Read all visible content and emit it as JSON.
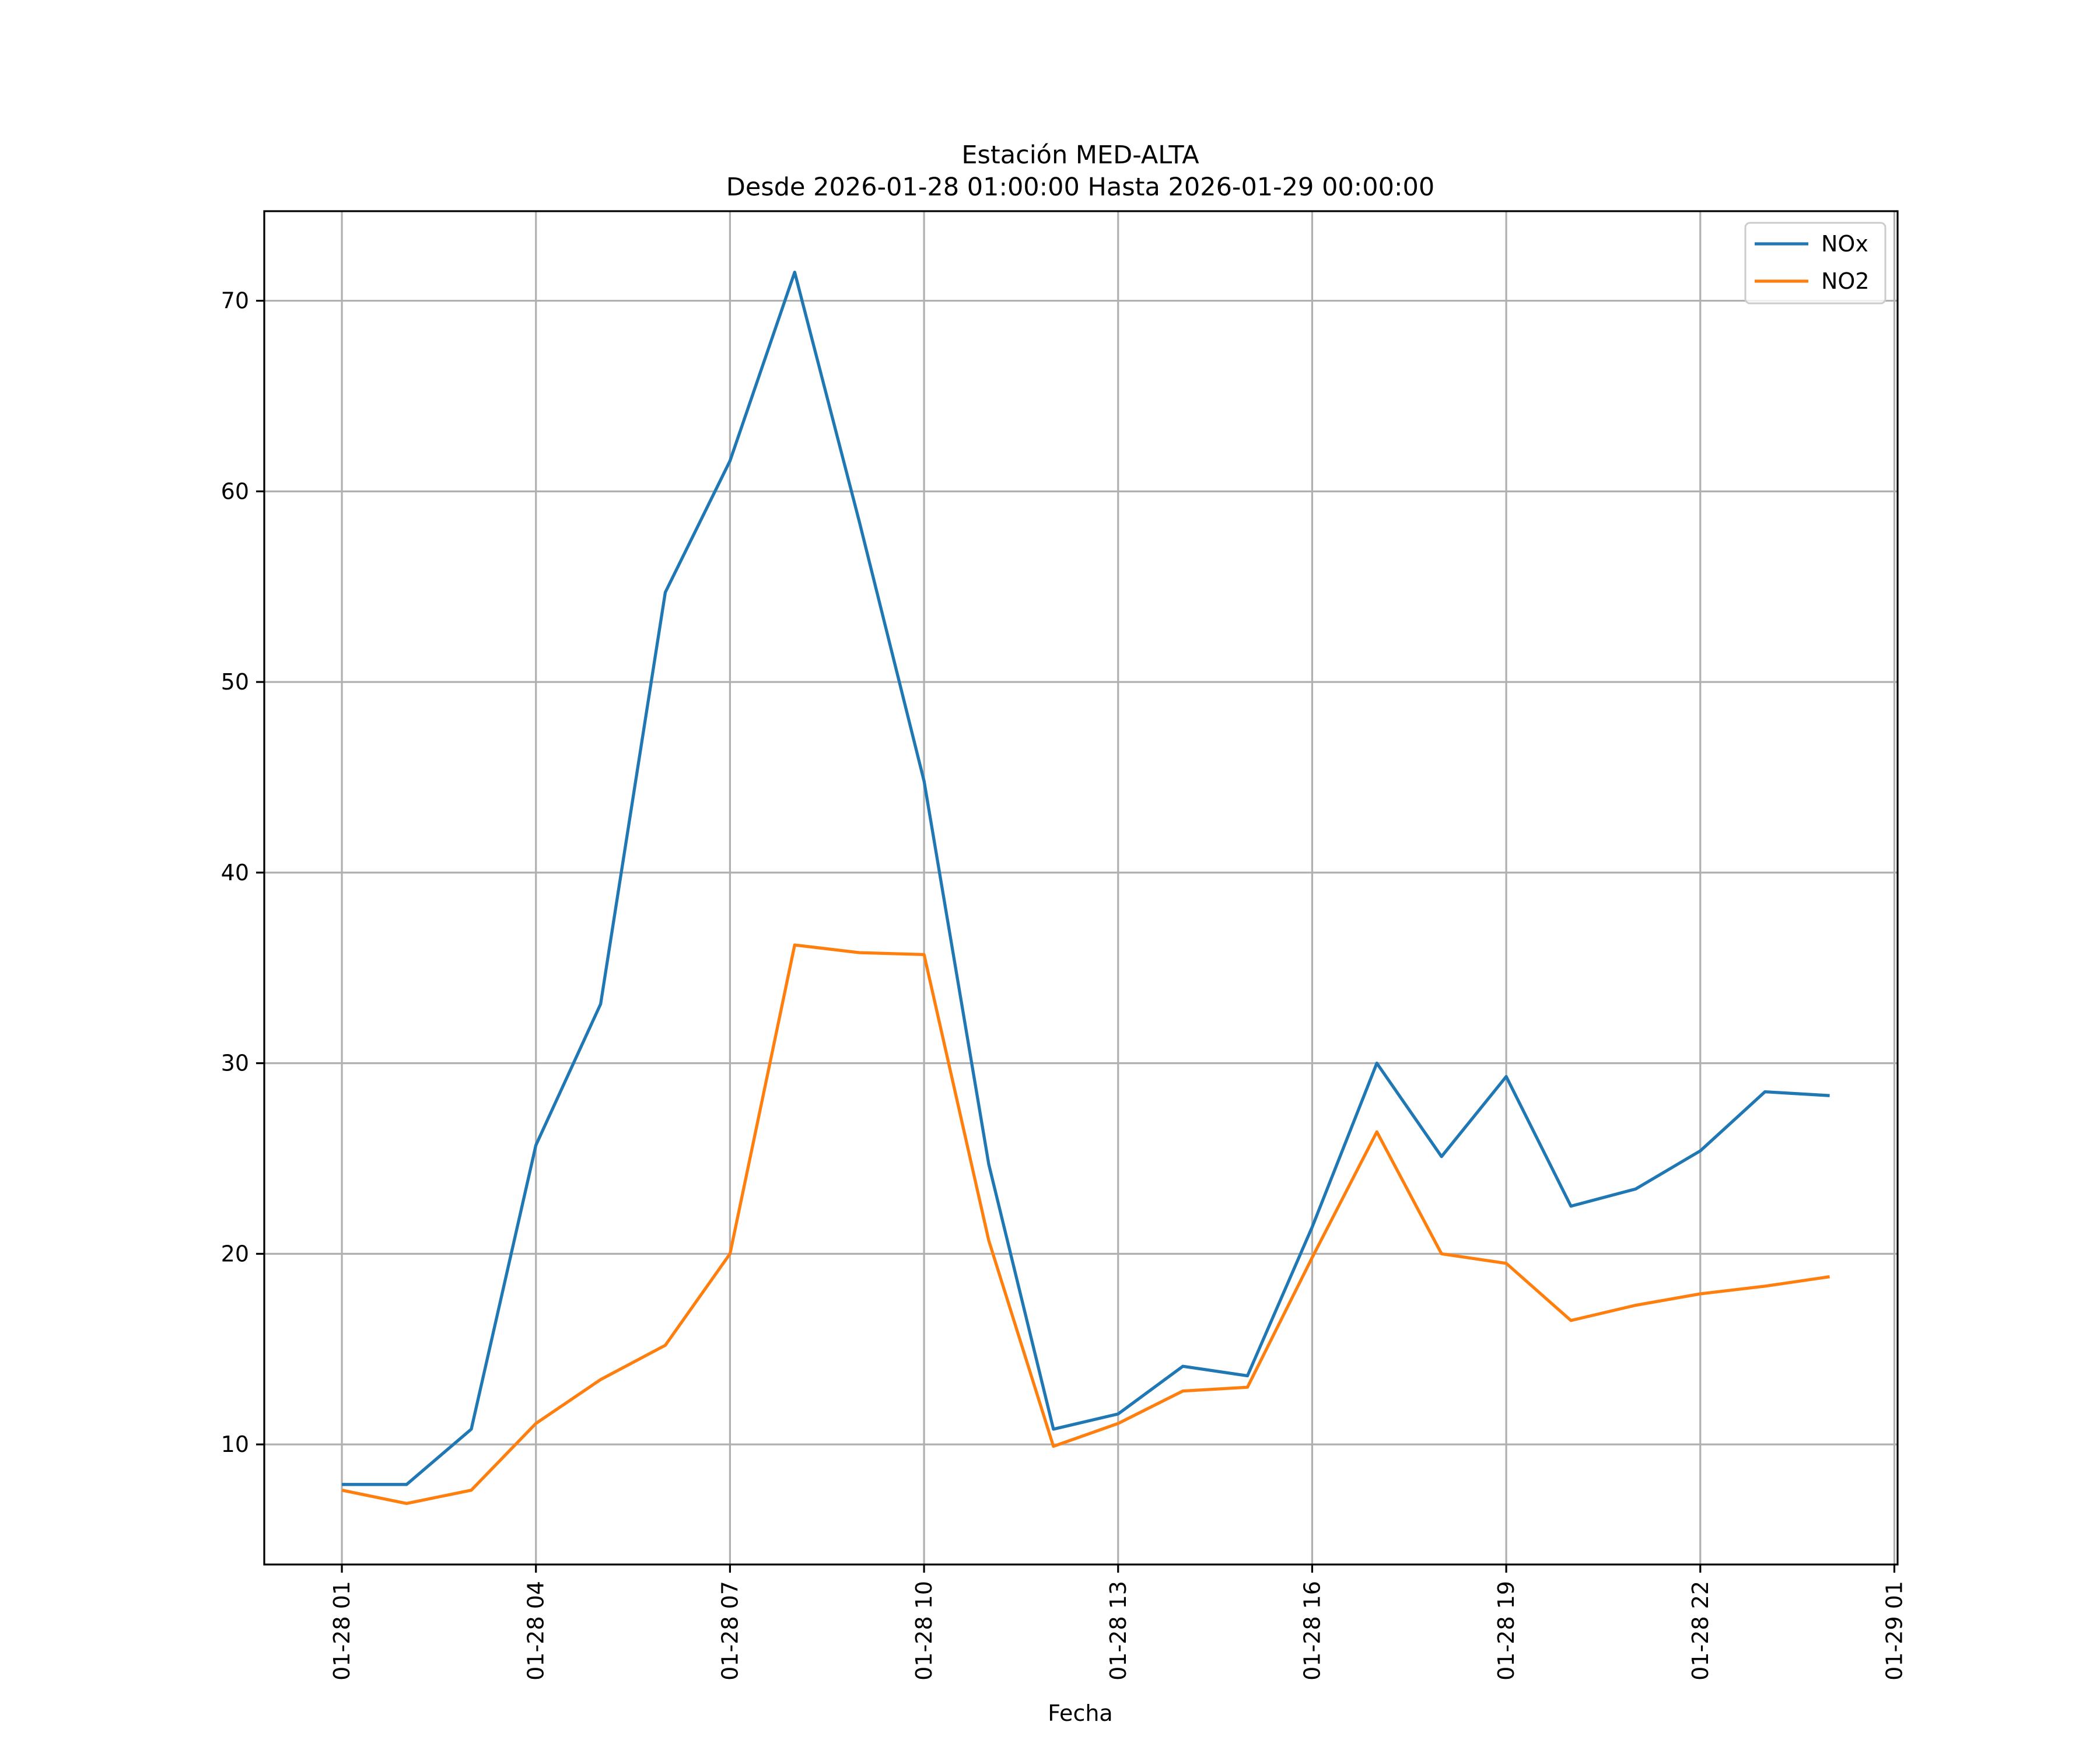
{
  "chart_data": {
    "type": "line",
    "title": "Estación MED-ALTA",
    "subtitle": "Desde 2026-01-28 01:00:00 Hasta 2026-01-29 00:00:00",
    "xlabel": "Fecha",
    "ylabel": "",
    "x": [
      "01-28 01",
      "01-28 02",
      "01-28 03",
      "01-28 04",
      "01-28 05",
      "01-28 06",
      "01-28 07",
      "01-28 08",
      "01-28 09",
      "01-28 10",
      "01-28 11",
      "01-28 12",
      "01-28 13",
      "01-28 14",
      "01-28 15",
      "01-28 16",
      "01-28 17",
      "01-28 18",
      "01-28 19",
      "01-28 20",
      "01-28 21",
      "01-28 22",
      "01-28 23",
      "01-29 00"
    ],
    "x_ticks": [
      "01-28 01",
      "01-28 04",
      "01-28 07",
      "01-28 10",
      "01-28 13",
      "01-28 16",
      "01-28 19",
      "01-28 22",
      "01-29 01"
    ],
    "x_range": [
      "01-28 00:00",
      "01-29 01:00"
    ],
    "y_ticks": [
      10,
      20,
      30,
      40,
      50,
      60,
      70
    ],
    "ylim": [
      3.7,
      74.7
    ],
    "grid": true,
    "legend_position": "top-right",
    "series": [
      {
        "name": "NOx",
        "color": "#1f77b4",
        "values": [
          7.9,
          7.9,
          10.8,
          25.7,
          33.1,
          54.7,
          61.6,
          71.5,
          58.4,
          44.8,
          24.7,
          10.8,
          11.6,
          14.1,
          13.6,
          21.4,
          30.0,
          25.1,
          29.3,
          22.5,
          23.4,
          25.4,
          28.5,
          28.3
        ]
      },
      {
        "name": "NO2",
        "color": "#ff7f0e",
        "values": [
          7.6,
          6.9,
          7.6,
          11.1,
          13.4,
          15.2,
          20.0,
          36.2,
          35.8,
          35.7,
          20.7,
          9.9,
          11.1,
          12.8,
          13.0,
          19.8,
          26.4,
          20.0,
          19.5,
          16.5,
          17.3,
          17.9,
          18.3,
          18.8
        ]
      }
    ]
  }
}
